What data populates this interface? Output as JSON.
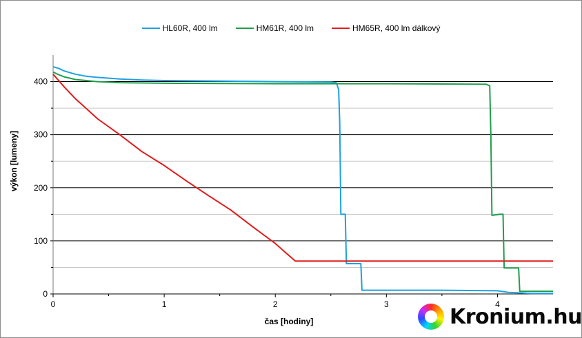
{
  "chart_data": {
    "type": "line",
    "xlabel": "čas [hodiny]",
    "ylabel": "výkon [lumeny]",
    "xlim": [
      0,
      4.5
    ],
    "ylim": [
      0,
      450
    ],
    "x_ticks": [
      0,
      1,
      2,
      3,
      4
    ],
    "x_tick_labels": [
      "0",
      "1",
      "2",
      "3",
      "4"
    ],
    "y_ticks": [
      0,
      100,
      200,
      300,
      400
    ],
    "y_tick_labels": [
      "0",
      "100",
      "200",
      "300",
      "400"
    ],
    "y_minor_gridlines": [
      50,
      150,
      250,
      350
    ],
    "grid": true,
    "legend_position": "top-center",
    "series": [
      {
        "name": "HL60R,  400 lm",
        "color": "#1ba1e2",
        "points": [
          [
            0,
            428
          ],
          [
            0.05,
            425
          ],
          [
            0.1,
            420
          ],
          [
            0.2,
            414
          ],
          [
            0.3,
            410
          ],
          [
            0.4,
            408
          ],
          [
            0.6,
            405
          ],
          [
            0.8,
            403
          ],
          [
            1.0,
            402
          ],
          [
            1.5,
            401
          ],
          [
            2.0,
            400
          ],
          [
            2.5,
            399
          ],
          [
            2.55,
            398
          ],
          [
            2.57,
            385
          ],
          [
            2.58,
            320
          ],
          [
            2.59,
            150
          ],
          [
            2.63,
            150
          ],
          [
            2.64,
            57
          ],
          [
            2.77,
            57
          ],
          [
            2.78,
            7
          ],
          [
            3.5,
            7
          ],
          [
            4.0,
            6
          ],
          [
            4.1,
            3
          ],
          [
            4.3,
            1
          ],
          [
            4.5,
            1
          ]
        ]
      },
      {
        "name": "HM61R,  400 lm",
        "color": "#1f9e4a",
        "points": [
          [
            0,
            418
          ],
          [
            0.05,
            413
          ],
          [
            0.1,
            409
          ],
          [
            0.2,
            404
          ],
          [
            0.4,
            400
          ],
          [
            0.6,
            398
          ],
          [
            1.0,
            397
          ],
          [
            2.0,
            396
          ],
          [
            3.0,
            396
          ],
          [
            3.9,
            395
          ],
          [
            3.93,
            392
          ],
          [
            3.94,
            300
          ],
          [
            3.95,
            148
          ],
          [
            4.02,
            150
          ],
          [
            4.05,
            150
          ],
          [
            4.06,
            49
          ],
          [
            4.19,
            49
          ],
          [
            4.2,
            5
          ],
          [
            4.5,
            5
          ]
        ]
      },
      {
        "name": "HM65R,  400 lm dálkový",
        "color": "#e01b1b",
        "points": [
          [
            0,
            414
          ],
          [
            0.1,
            390
          ],
          [
            0.2,
            368
          ],
          [
            0.4,
            330
          ],
          [
            0.6,
            300
          ],
          [
            0.8,
            268
          ],
          [
            1.0,
            242
          ],
          [
            1.2,
            213
          ],
          [
            1.4,
            185
          ],
          [
            1.6,
            158
          ],
          [
            1.8,
            126
          ],
          [
            2.0,
            95
          ],
          [
            2.18,
            62
          ],
          [
            2.5,
            62
          ],
          [
            3.0,
            62
          ],
          [
            3.5,
            62
          ],
          [
            4.0,
            62
          ],
          [
            4.5,
            62
          ]
        ]
      }
    ]
  },
  "brand": {
    "name": "Kronium.hu",
    "logo_icon": "rainbow-ring-icon"
  }
}
